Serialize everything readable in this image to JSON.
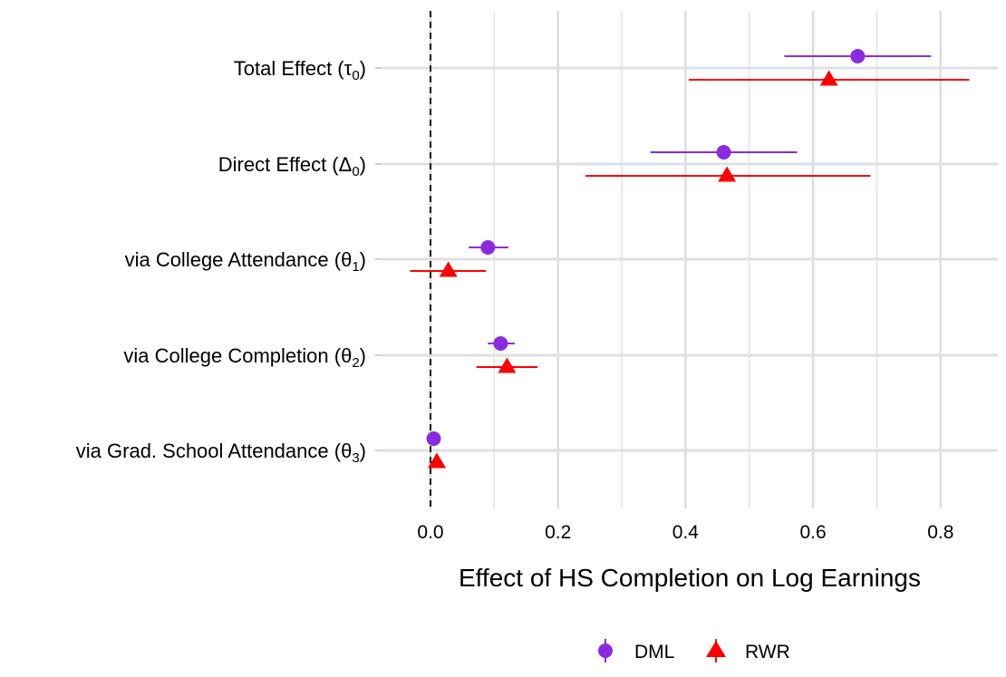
{
  "chart_data": {
    "type": "scatter",
    "subtype": "coefficient-plot-with-error-bars",
    "title": "",
    "xlabel": "Effect of HS Completion on Log Earnings",
    "ylabel": "",
    "xlim": [
      -0.065,
      0.9
    ],
    "xticks": [
      0.0,
      0.2,
      0.4,
      0.6,
      0.8
    ],
    "xtick_labels": [
      "0.0",
      "0.2",
      "0.4",
      "0.6",
      "0.8"
    ],
    "grid": true,
    "reference_line": {
      "x": 0.0,
      "style": "dashed"
    },
    "categories": [
      "Total Effect (τ₀)",
      "Direct Effect (Δ₀)",
      "via College Attendance (θ₁)",
      "via College Completion (θ₂)",
      "via Grad. School Attendance (θ₃)"
    ],
    "category_parts": [
      {
        "text": "Total Effect (",
        "sym": "τ",
        "sub": "0"
      },
      {
        "text": "Direct Effect (",
        "sym": "Δ",
        "sub": "0"
      },
      {
        "text": "via College Attendance (",
        "sym": "θ",
        "sub": "1"
      },
      {
        "text": "via College Completion (",
        "sym": "θ",
        "sub": "2"
      },
      {
        "text": "via Grad. School Attendance (",
        "sym": "θ",
        "sub": "3"
      }
    ],
    "series": [
      {
        "name": "DML",
        "marker": "circle",
        "color": "#8A2BE2",
        "estimates": [
          0.67,
          0.46,
          0.09,
          0.11,
          0.005
        ],
        "ci_low": [
          0.555,
          0.345,
          0.06,
          0.09,
          -0.002
        ],
        "ci_high": [
          0.785,
          0.575,
          0.122,
          0.132,
          0.012
        ]
      },
      {
        "name": "RWR",
        "marker": "triangle",
        "color": "#FF0000",
        "estimates": [
          0.625,
          0.465,
          0.028,
          0.12,
          0.01
        ],
        "ci_low": [
          0.405,
          0.243,
          -0.032,
          0.072,
          0.003
        ],
        "ci_high": [
          0.845,
          0.69,
          0.087,
          0.168,
          0.017
        ]
      }
    ],
    "legend": {
      "position": "bottom",
      "entries": [
        "DML",
        "RWR"
      ]
    }
  }
}
